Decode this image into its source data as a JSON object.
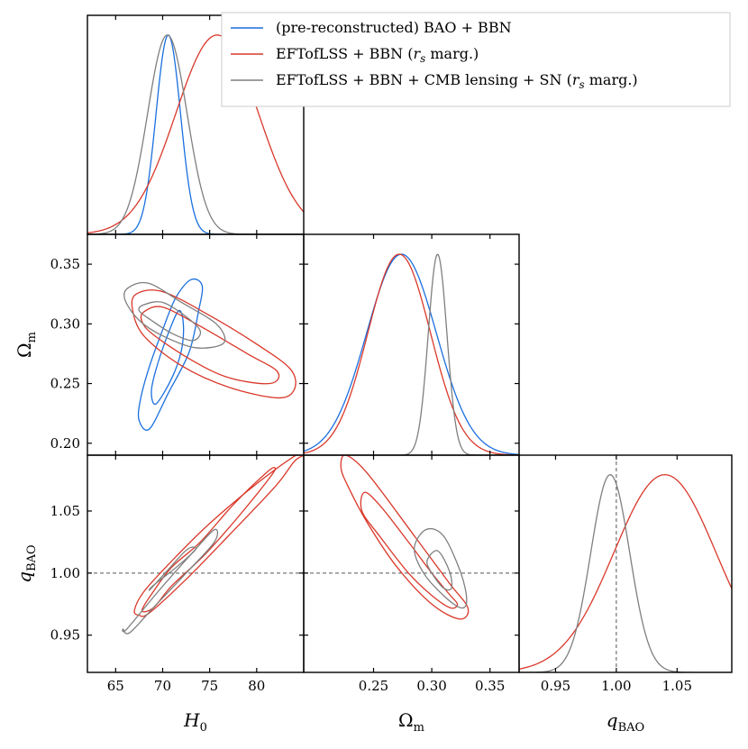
{
  "chart_data": {
    "type": "triangle-corner-plot",
    "parameters": [
      "H0",
      "Omega_m",
      "q_BAO"
    ],
    "axis_labels": {
      "H0": {
        "main": "H",
        "sub": "0"
      },
      "Omega_m": {
        "main": "Ω",
        "sub": "m"
      },
      "q_BAO": {
        "main": "q",
        "sub": "BAO"
      }
    },
    "ranges": {
      "H0": [
        62,
        85
      ],
      "Omega_m": [
        0.19,
        0.375
      ],
      "q_BAO": [
        0.92,
        1.095
      ]
    },
    "ticks": {
      "H0": {
        "values": [
          65,
          70,
          75,
          80
        ],
        "labels": [
          "65",
          "70",
          "75",
          "80"
        ]
      },
      "Omega_m_x": {
        "values": [
          0.25,
          0.3,
          0.35
        ],
        "labels": [
          "0.25",
          "0.30",
          "0.35"
        ]
      },
      "Omega_m_y": {
        "values": [
          0.2,
          0.25,
          0.3,
          0.35
        ],
        "labels": [
          "0.20",
          "0.25",
          "0.30",
          "0.35"
        ]
      },
      "q_BAO_y": {
        "values": [
          0.95,
          1.0,
          1.05
        ],
        "labels": [
          "0.95",
          "1.00",
          "1.05"
        ]
      },
      "q_BAO_x": {
        "values": [
          0.95,
          1.0,
          1.05
        ],
        "labels": [
          "0.95",
          "1.00",
          "1.05"
        ]
      }
    },
    "reference_line": {
      "parameter": "q_BAO",
      "value": 1.0,
      "style": "dashed"
    },
    "legend": {
      "position": "top-right",
      "entries": [
        {
          "id": "bao",
          "label_parts": [
            "(pre-reconstructed) BAO + BBN"
          ]
        },
        {
          "id": "eft",
          "label_parts": [
            "EFTofLSS + BBN (",
            "r",
            "s",
            " marg.)"
          ]
        },
        {
          "id": "full",
          "label_parts": [
            "EFTofLSS + BBN + CMB lensing + SN (",
            "r",
            "s",
            " marg.)"
          ]
        }
      ]
    },
    "series": [
      {
        "id": "bao",
        "name": "(pre-reconstructed) BAO + BBN",
        "color": "#1a6fdf",
        "marginals": {
          "H0": {
            "mean": 70.6,
            "sigma": 1.3
          },
          "Omega_m": {
            "mean": 0.274,
            "sigma": 0.03
          }
        },
        "contours": {
          "H0-Omega_m": [
            {
              "level": "68%",
              "points": [
                [
                  69.3,
                  0.233
                ],
                [
                  71.0,
                  0.255
                ],
                [
                  72.0,
                  0.278
                ],
                [
                  72.2,
                  0.3
                ],
                [
                  71.7,
                  0.311
                ],
                [
                  70.5,
                  0.29
                ],
                [
                  69.3,
                  0.262
                ],
                [
                  68.8,
                  0.243
                ]
              ]
            },
            {
              "level": "95%",
              "points": [
                [
                  68.6,
                  0.212
                ],
                [
                  70.6,
                  0.242
                ],
                [
                  72.8,
                  0.276
                ],
                [
                  73.8,
                  0.31
                ],
                [
                  74.2,
                  0.332
                ],
                [
                  73.0,
                  0.337
                ],
                [
                  71.4,
                  0.322
                ],
                [
                  70.0,
                  0.295
                ],
                [
                  68.5,
                  0.262
                ],
                [
                  67.6,
                  0.235
                ],
                [
                  67.5,
                  0.219
                ]
              ]
            }
          ]
        }
      },
      {
        "id": "eft",
        "name": "EFTofLSS + BBN (rs marg.)",
        "color": "#d9382a",
        "marginals": {
          "H0": {
            "mean": 75.8,
            "sigma": 4.4
          },
          "Omega_m": {
            "mean": 0.272,
            "sigma": 0.027
          },
          "q_BAO": {
            "mean": 1.04,
            "sigma": 0.042
          }
        },
        "contours": {
          "H0-Omega_m": [
            {
              "level": "68%",
              "points": [
                [
                  68.0,
                  0.31
                ],
                [
                  70.0,
                  0.314
                ],
                [
                  74.0,
                  0.298
                ],
                [
                  79.0,
                  0.275
                ],
                [
                  82.2,
                  0.26
                ],
                [
                  81.4,
                  0.25
                ],
                [
                  77.0,
                  0.255
                ],
                [
                  73.0,
                  0.27
                ],
                [
                  69.0,
                  0.291
                ],
                [
                  67.8,
                  0.302
                ]
              ]
            },
            {
              "level": "95%",
              "points": [
                [
                  67.2,
                  0.325
                ],
                [
                  70.0,
                  0.327
                ],
                [
                  75.0,
                  0.307
                ],
                [
                  80.0,
                  0.283
                ],
                [
                  83.6,
                  0.262
                ],
                [
                  84.0,
                  0.245
                ],
                [
                  82.2,
                  0.238
                ],
                [
                  77.0,
                  0.247
                ],
                [
                  72.0,
                  0.265
                ],
                [
                  68.0,
                  0.29
                ],
                [
                  66.8,
                  0.312
                ]
              ]
            }
          ],
          "H0-q_BAO": [
            {
              "level": "68%",
              "points": [
                [
                  69.0,
                  0.972
                ],
                [
                  71.0,
                  0.99
                ],
                [
                  74.5,
                  1.015
                ],
                [
                  78.0,
                  1.045
                ],
                [
                  81.5,
                  1.078
                ],
                [
                  81.9,
                  1.085
                ],
                [
                  80.9,
                  1.08
                ],
                [
                  77.5,
                  1.055
                ],
                [
                  74.0,
                  1.025
                ],
                [
                  71.0,
                  1.005
                ],
                [
                  69.0,
                  0.985
                ],
                [
                  67.8,
                  0.97
                ]
              ]
            },
            {
              "level": "95%",
              "points": [
                [
                  68.6,
                  0.968
                ],
                [
                  72.5,
                  0.995
                ],
                [
                  77.0,
                  1.03
                ],
                [
                  82.0,
                  1.07
                ],
                [
                  84.0,
                  1.09
                ],
                [
                  85.0,
                  1.095
                ],
                [
                  84.2,
                  1.095
                ],
                [
                  80.0,
                  1.072
                ],
                [
                  75.0,
                  1.04
                ],
                [
                  71.0,
                  1.01
                ],
                [
                  68.0,
                  0.985
                ],
                [
                  67.0,
                  0.97
                ],
                [
                  67.5,
                  0.966
                ]
              ]
            }
          ],
          "Omega_m-q_BAO": [
            {
              "level": "68%",
              "points": [
                [
                  0.242,
                  1.065
                ],
                [
                  0.255,
                  1.055
                ],
                [
                  0.28,
                  1.025
                ],
                [
                  0.3,
                  1.0
                ],
                [
                  0.315,
                  0.983
                ],
                [
                  0.322,
                  0.975
                ],
                [
                  0.316,
                  0.972
                ],
                [
                  0.3,
                  0.982
                ],
                [
                  0.28,
                  1.0
                ],
                [
                  0.255,
                  1.03
                ],
                [
                  0.24,
                  1.05
                ]
              ]
            },
            {
              "level": "95%",
              "points": [
                [
                  0.226,
                  1.095
                ],
                [
                  0.245,
                  1.08
                ],
                [
                  0.285,
                  1.03
                ],
                [
                  0.315,
                  0.992
                ],
                [
                  0.331,
                  0.972
                ],
                [
                  0.324,
                  0.963
                ],
                [
                  0.3,
                  0.975
                ],
                [
                  0.27,
                  1.005
                ],
                [
                  0.245,
                  1.04
                ],
                [
                  0.228,
                  1.07
                ],
                [
                  0.222,
                  1.085
                ]
              ]
            }
          ]
        }
      },
      {
        "id": "full",
        "name": "EFTofLSS + BBN + CMB lensing + SN (rs marg.)",
        "color": "#7f7f7f",
        "marginals": {
          "H0": {
            "mean": 70.5,
            "sigma": 2.1
          },
          "Omega_m": {
            "mean": 0.305,
            "sigma": 0.008
          },
          "q_BAO": {
            "mean": 0.995,
            "sigma": 0.016
          }
        },
        "contours": {
          "H0-Omega_m": [
            {
              "level": "68%",
              "points": [
                [
                  68.0,
                  0.316
                ],
                [
                  70.0,
                  0.318
                ],
                [
                  72.5,
                  0.306
                ],
                [
                  74.0,
                  0.294
                ],
                [
                  73.2,
                  0.286
                ],
                [
                  71.0,
                  0.292
                ],
                [
                  68.8,
                  0.303
                ],
                [
                  67.5,
                  0.311
                ]
              ]
            },
            {
              "level": "95%",
              "points": [
                [
                  66.3,
                  0.33
                ],
                [
                  68.5,
                  0.334
                ],
                [
                  72.0,
                  0.318
                ],
                [
                  75.7,
                  0.3
                ],
                [
                  76.5,
                  0.284
                ],
                [
                  73.5,
                  0.28
                ],
                [
                  70.0,
                  0.29
                ],
                [
                  67.5,
                  0.303
                ],
                [
                  66.0,
                  0.32
                ]
              ]
            }
          ],
          "H0-q_BAO": [
            {
              "level": "68%",
              "points": [
                [
                  69.0,
                  0.99
                ],
                [
                  71.5,
                  1.005
                ],
                [
                  73.5,
                  1.019
                ],
                [
                  72.6,
                  1.019
                ],
                [
                  70.5,
                  1.002
                ],
                [
                  68.7,
                  0.987
                ]
              ]
            },
            {
              "level": "95%",
              "points": [
                [
                  66.2,
                  0.955
                ],
                [
                  69.5,
                  0.985
                ],
                [
                  73.0,
                  1.015
                ],
                [
                  75.5,
                  1.035
                ],
                [
                  75.5,
                  1.025
                ],
                [
                  72.5,
                  1.0
                ],
                [
                  69.0,
                  0.972
                ],
                [
                  66.5,
                  0.952
                ],
                [
                  65.8,
                  0.955
                ]
              ]
            }
          ],
          "Omega_m-q_BAO": [
            {
              "level": "68%",
              "points": [
                [
                  0.296,
                  1.01
                ],
                [
                  0.305,
                  1.018
                ],
                [
                  0.315,
                  1.002
                ],
                [
                  0.317,
                  0.988
                ],
                [
                  0.31,
                  0.988
                ],
                [
                  0.3,
                  1.0
                ]
              ]
            },
            {
              "level": "95%",
              "points": [
                [
                  0.285,
                  1.02
                ],
                [
                  0.295,
                  1.035
                ],
                [
                  0.31,
                  1.03
                ],
                [
                  0.325,
                  1.0
                ],
                [
                  0.33,
                  0.978
                ],
                [
                  0.325,
                  0.972
                ],
                [
                  0.31,
                  0.982
                ],
                [
                  0.293,
                  1.0
                ]
              ]
            }
          ]
        }
      }
    ]
  }
}
